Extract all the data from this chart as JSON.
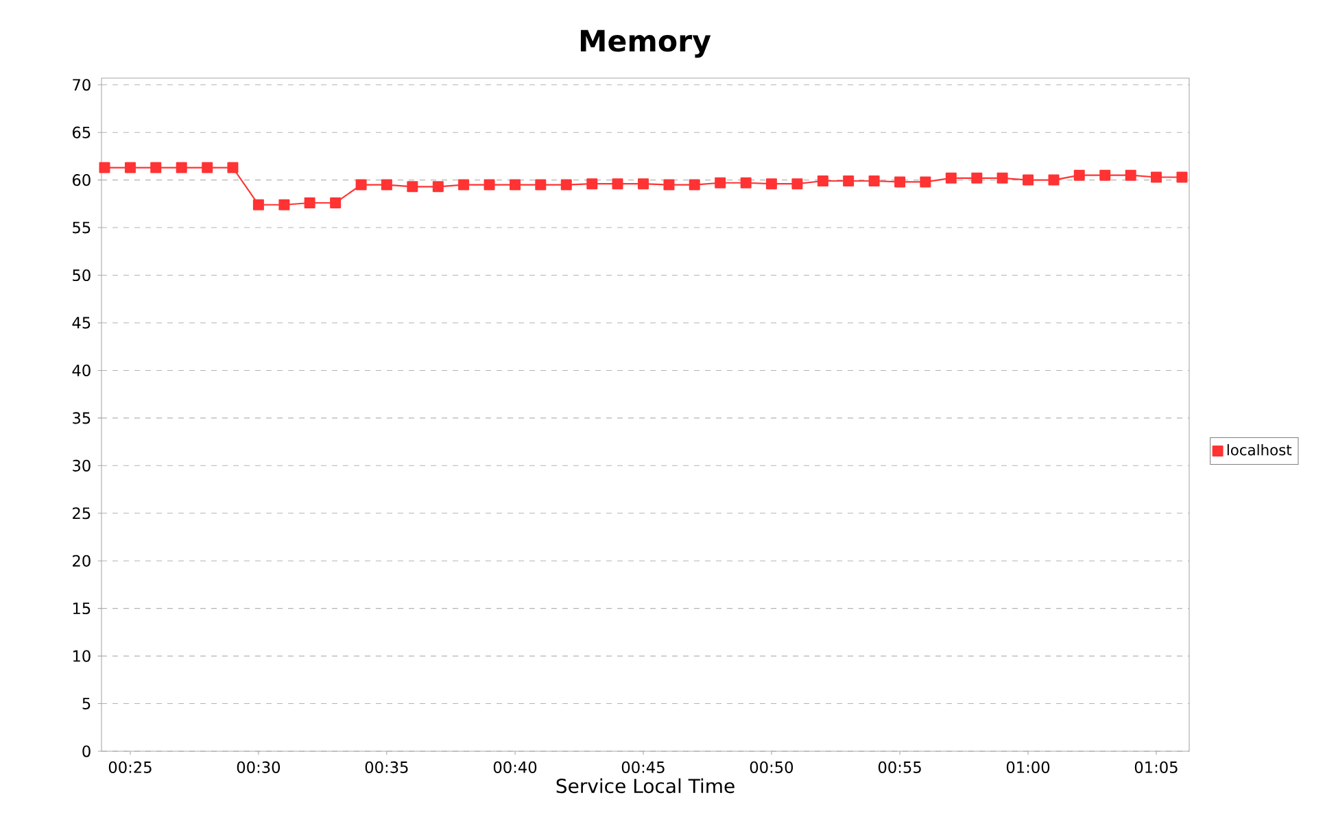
{
  "chart_data": {
    "type": "line",
    "title": "Memory",
    "xlabel": "Service Local Time",
    "x": [
      0.4,
      0.4167,
      0.4333,
      0.45,
      0.4667,
      0.4833,
      0.5,
      0.5167,
      0.5333,
      0.55,
      0.5667,
      0.5833,
      0.6,
      0.6167,
      0.6333,
      0.65,
      0.6667,
      0.6833,
      0.7,
      0.7167,
      0.7333,
      0.75,
      0.7667,
      0.7833,
      0.8,
      0.8167,
      0.8333,
      0.85,
      0.8667,
      0.8833,
      0.9,
      0.9167,
      0.9333,
      0.95,
      0.9667,
      0.9833,
      1.0,
      1.0167,
      1.0333,
      1.05,
      1.0667,
      1.0833,
      1.1
    ],
    "series": [
      {
        "name": "localhost",
        "color": "#ff3333",
        "values": [
          61.3,
          61.3,
          61.3,
          61.3,
          61.3,
          61.3,
          57.4,
          57.4,
          57.6,
          57.6,
          59.5,
          59.5,
          59.3,
          59.3,
          59.5,
          59.5,
          59.5,
          59.5,
          59.5,
          59.6,
          59.6,
          59.6,
          59.5,
          59.5,
          59.7,
          59.7,
          59.6,
          59.6,
          59.9,
          59.9,
          59.9,
          59.8,
          59.8,
          60.2,
          60.2,
          60.2,
          60.0,
          60.0,
          60.5,
          60.5,
          60.5,
          60.3,
          60.3
        ]
      }
    ],
    "xlim": [
      0.398,
      1.1047
    ],
    "ylim": [
      0,
      70.7
    ],
    "xticks": [
      {
        "value": 0.4167,
        "label": "00:25"
      },
      {
        "value": 0.5,
        "label": "00:30"
      },
      {
        "value": 0.5833,
        "label": "00:35"
      },
      {
        "value": 0.6667,
        "label": "00:40"
      },
      {
        "value": 0.75,
        "label": "00:45"
      },
      {
        "value": 0.8333,
        "label": "00:50"
      },
      {
        "value": 0.9167,
        "label": "00:55"
      },
      {
        "value": 1.0,
        "label": "01:00"
      },
      {
        "value": 1.0833,
        "label": "01:05"
      }
    ],
    "yticks": [
      0,
      5,
      10,
      15,
      20,
      25,
      30,
      35,
      40,
      45,
      50,
      55,
      60,
      65,
      70
    ],
    "grid": "y",
    "legend": "right",
    "marker": "square",
    "line_style": "solid"
  }
}
